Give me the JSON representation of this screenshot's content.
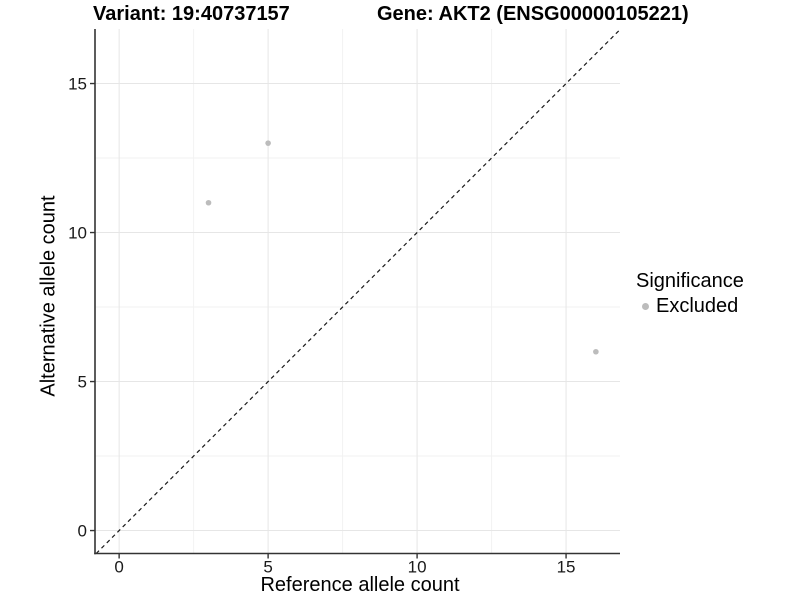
{
  "chart_data": {
    "type": "scatter",
    "title_left": "Variant: 19:40737157",
    "title_right": "Gene: AKT2 (ENSG00000105221)",
    "xlabel": "Reference allele count",
    "ylabel": "Alternative allele count",
    "xlim": [
      -0.81,
      16.81
    ],
    "ylim": [
      -0.77,
      16.83
    ],
    "x_ticks": [
      0,
      5,
      10,
      15
    ],
    "y_ticks": [
      0,
      5,
      10,
      15
    ],
    "x_minor_ticks": [
      2.5,
      7.5,
      12.5
    ],
    "y_minor_ticks": [
      2.5,
      7.5,
      12.5
    ],
    "grid": "major+minor",
    "legend": {
      "title": "Significance",
      "position": "right",
      "items": [
        {
          "label": "Excluded",
          "color": "#bcbcbc",
          "marker": "circle"
        }
      ]
    },
    "series": [
      {
        "name": "Excluded",
        "color": "#bcbcbc",
        "marker_radius": 2.8,
        "points": [
          {
            "x": 3,
            "y": 11
          },
          {
            "x": 5,
            "y": 13
          },
          {
            "x": 16,
            "y": 6
          }
        ]
      }
    ],
    "reference_line": {
      "slope": 1,
      "intercept": 0,
      "style": "dashed",
      "color": "#1a1a1a"
    },
    "colors": {
      "background": "#ffffff",
      "grid_major": "#e6e6e6",
      "grid_minor": "#f2f2f2",
      "axis": "#333333",
      "tick_label": "#1a1a1a",
      "text": "#000000"
    }
  }
}
